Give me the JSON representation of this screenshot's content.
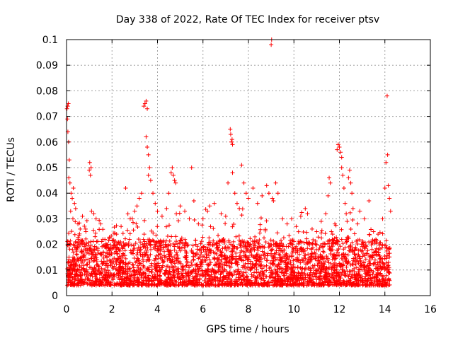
{
  "chart_data": {
    "type": "scatter",
    "title": "Day 338 of 2022, Rate Of TEC Index for receiver ptsv",
    "xlabel": "GPS time / hours",
    "ylabel": "ROTI / TECUs",
    "xlim": [
      0,
      16
    ],
    "ylim": [
      0,
      0.1
    ],
    "xticks": [
      "0",
      "2",
      "4",
      "6",
      "8",
      "10",
      "12",
      "14",
      "16"
    ],
    "yticks": [
      "0",
      "0.01",
      "0.02",
      "0.03",
      "0.04",
      "0.05",
      "0.06",
      "0.07",
      "0.08",
      "0.09",
      "0.1"
    ],
    "grid": true,
    "marker": "+",
    "color": "#ff0000",
    "series": [
      {
        "points": [
          [
            0.02,
            0.073
          ],
          [
            0.05,
            0.074
          ],
          [
            0.08,
            0.075
          ],
          [
            0.04,
            0.069
          ],
          [
            0.06,
            0.064
          ],
          [
            0.09,
            0.06
          ],
          [
            0.12,
            0.053
          ],
          [
            0.1,
            0.046
          ],
          [
            0.15,
            0.044
          ],
          [
            0.2,
            0.04
          ],
          [
            0.25,
            0.038
          ],
          [
            0.3,
            0.042
          ],
          [
            0.35,
            0.036
          ],
          [
            0.4,
            0.034
          ],
          [
            0.18,
            0.033
          ],
          [
            0.28,
            0.03
          ],
          [
            0.5,
            0.028
          ],
          [
            0.6,
            0.026
          ],
          [
            0.7,
            0.031
          ],
          [
            0.85,
            0.025
          ],
          [
            1.0,
            0.049
          ],
          [
            1.02,
            0.052
          ],
          [
            1.05,
            0.047
          ],
          [
            1.08,
            0.05
          ],
          [
            1.1,
            0.033
          ],
          [
            1.2,
            0.032
          ],
          [
            1.3,
            0.03
          ],
          [
            1.5,
            0.028
          ],
          [
            1.6,
            0.022
          ],
          [
            1.8,
            0.02
          ],
          [
            2.0,
            0.019
          ],
          [
            2.2,
            0.024
          ],
          [
            2.4,
            0.027
          ],
          [
            2.6,
            0.042
          ],
          [
            2.8,
            0.03
          ],
          [
            3.0,
            0.033
          ],
          [
            3.1,
            0.035
          ],
          [
            3.2,
            0.038
          ],
          [
            3.3,
            0.04
          ],
          [
            3.4,
            0.074
          ],
          [
            3.45,
            0.075
          ],
          [
            3.5,
            0.076
          ],
          [
            3.55,
            0.073
          ],
          [
            3.5,
            0.062
          ],
          [
            3.55,
            0.058
          ],
          [
            3.6,
            0.055
          ],
          [
            3.65,
            0.05
          ],
          [
            3.6,
            0.047
          ],
          [
            3.7,
            0.045
          ],
          [
            3.8,
            0.04
          ],
          [
            3.9,
            0.036
          ],
          [
            4.0,
            0.033
          ],
          [
            4.2,
            0.031
          ],
          [
            4.4,
            0.034
          ],
          [
            4.5,
            0.04
          ],
          [
            4.6,
            0.048
          ],
          [
            4.65,
            0.05
          ],
          [
            4.7,
            0.047
          ],
          [
            4.75,
            0.045
          ],
          [
            4.8,
            0.044
          ],
          [
            5.0,
            0.035
          ],
          [
            5.2,
            0.033
          ],
          [
            5.4,
            0.03
          ],
          [
            5.5,
            0.05
          ],
          [
            5.6,
            0.037
          ],
          [
            5.8,
            0.028
          ],
          [
            6.0,
            0.03
          ],
          [
            6.2,
            0.033
          ],
          [
            6.3,
            0.035
          ],
          [
            6.5,
            0.036
          ],
          [
            6.8,
            0.032
          ],
          [
            7.0,
            0.031
          ],
          [
            7.1,
            0.044
          ],
          [
            7.2,
            0.065
          ],
          [
            7.22,
            0.063
          ],
          [
            7.25,
            0.06
          ],
          [
            7.28,
            0.061
          ],
          [
            7.3,
            0.059
          ],
          [
            7.3,
            0.048
          ],
          [
            7.4,
            0.04
          ],
          [
            7.5,
            0.036
          ],
          [
            7.6,
            0.034
          ],
          [
            7.7,
            0.051
          ],
          [
            7.8,
            0.044
          ],
          [
            7.9,
            0.04
          ],
          [
            8.0,
            0.038
          ],
          [
            8.2,
            0.042
          ],
          [
            8.4,
            0.036
          ],
          [
            8.6,
            0.039
          ],
          [
            8.8,
            0.043
          ],
          [
            8.9,
            0.04
          ],
          [
            9.0,
            0.098
          ],
          [
            9.02,
            0.1
          ],
          [
            9.05,
            0.038
          ],
          [
            9.1,
            0.037
          ],
          [
            9.2,
            0.044
          ],
          [
            9.3,
            0.04
          ],
          [
            9.5,
            0.03
          ],
          [
            9.7,
            0.028
          ],
          [
            9.9,
            0.03
          ],
          [
            10.1,
            0.027
          ],
          [
            10.3,
            0.031
          ],
          [
            10.5,
            0.034
          ],
          [
            10.6,
            0.032
          ],
          [
            10.8,
            0.026
          ],
          [
            11.0,
            0.025
          ],
          [
            11.2,
            0.029
          ],
          [
            11.4,
            0.032
          ],
          [
            11.5,
            0.039
          ],
          [
            11.55,
            0.046
          ],
          [
            11.6,
            0.044
          ],
          [
            11.65,
            0.025
          ],
          [
            11.7,
            0.024
          ],
          [
            11.8,
            0.028
          ],
          [
            11.9,
            0.057
          ],
          [
            11.95,
            0.059
          ],
          [
            12.0,
            0.058
          ],
          [
            12.05,
            0.056
          ],
          [
            12.1,
            0.054
          ],
          [
            12.1,
            0.05
          ],
          [
            12.15,
            0.047
          ],
          [
            12.2,
            0.042
          ],
          [
            12.25,
            0.036
          ],
          [
            12.3,
            0.032
          ],
          [
            12.4,
            0.046
          ],
          [
            12.45,
            0.049
          ],
          [
            12.5,
            0.044
          ],
          [
            12.55,
            0.04
          ],
          [
            12.6,
            0.034
          ],
          [
            12.8,
            0.028
          ],
          [
            12.9,
            0.033
          ],
          [
            13.1,
            0.03
          ],
          [
            13.3,
            0.037
          ],
          [
            13.5,
            0.025
          ],
          [
            13.7,
            0.024
          ],
          [
            13.9,
            0.03
          ],
          [
            14.0,
            0.042
          ],
          [
            14.05,
            0.052
          ],
          [
            14.1,
            0.078
          ],
          [
            14.12,
            0.055
          ],
          [
            14.15,
            0.043
          ],
          [
            14.2,
            0.038
          ],
          [
            14.25,
            0.033
          ]
        ]
      }
    ]
  }
}
